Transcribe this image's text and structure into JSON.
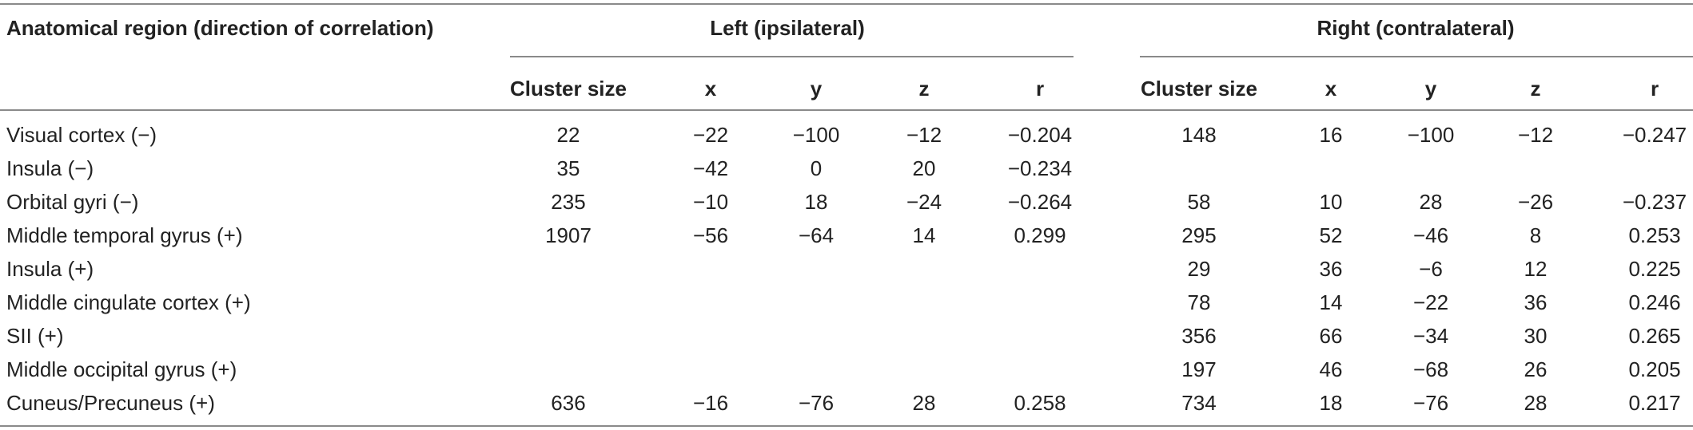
{
  "table": {
    "region_header": "Anatomical region (direction of correlation)",
    "left_group_header": "Left (ipsilateral)",
    "right_group_header": "Right (contralateral)",
    "subheaders": [
      "Cluster size",
      "x",
      "y",
      "z",
      "r",
      "Cluster size",
      "x",
      "y",
      "z",
      "r"
    ],
    "rows": [
      {
        "region": "Visual cortex (−)",
        "cells": [
          "22",
          "−22",
          "−100",
          "−12",
          "−0.204",
          "148",
          "16",
          "−100",
          "−12",
          "−0.247"
        ]
      },
      {
        "region": "Insula (−)",
        "cells": [
          "35",
          "−42",
          "0",
          "20",
          "−0.234",
          "",
          "",
          "",
          "",
          ""
        ]
      },
      {
        "region": "Orbital gyri (−)",
        "cells": [
          "235",
          "−10",
          "18",
          "−24",
          "−0.264",
          "58",
          "10",
          "28",
          "−26",
          "−0.237"
        ]
      },
      {
        "region": "Middle temporal gyrus (+)",
        "cells": [
          "1907",
          "−56",
          "−64",
          "14",
          "0.299",
          "295",
          "52",
          "−46",
          "8",
          "0.253"
        ]
      },
      {
        "region": "Insula (+)",
        "cells": [
          "",
          "",
          "",
          "",
          "",
          "29",
          "36",
          "−6",
          "12",
          "0.225"
        ]
      },
      {
        "region": "Middle cingulate cortex (+)",
        "cells": [
          "",
          "",
          "",
          "",
          "",
          "78",
          "14",
          "−22",
          "36",
          "0.246"
        ]
      },
      {
        "region": "SII (+)",
        "cells": [
          "",
          "",
          "",
          "",
          "",
          "356",
          "66",
          "−34",
          "30",
          "0.265"
        ]
      },
      {
        "region": "Middle occipital gyrus (+)",
        "cells": [
          "",
          "",
          "",
          "",
          "",
          "197",
          "46",
          "−68",
          "26",
          "0.205"
        ]
      },
      {
        "region": "Cuneus/Precuneus (+)",
        "cells": [
          "636",
          "−16",
          "−76",
          "28",
          "0.258",
          "734",
          "18",
          "−76",
          "28",
          "0.217"
        ]
      }
    ]
  }
}
